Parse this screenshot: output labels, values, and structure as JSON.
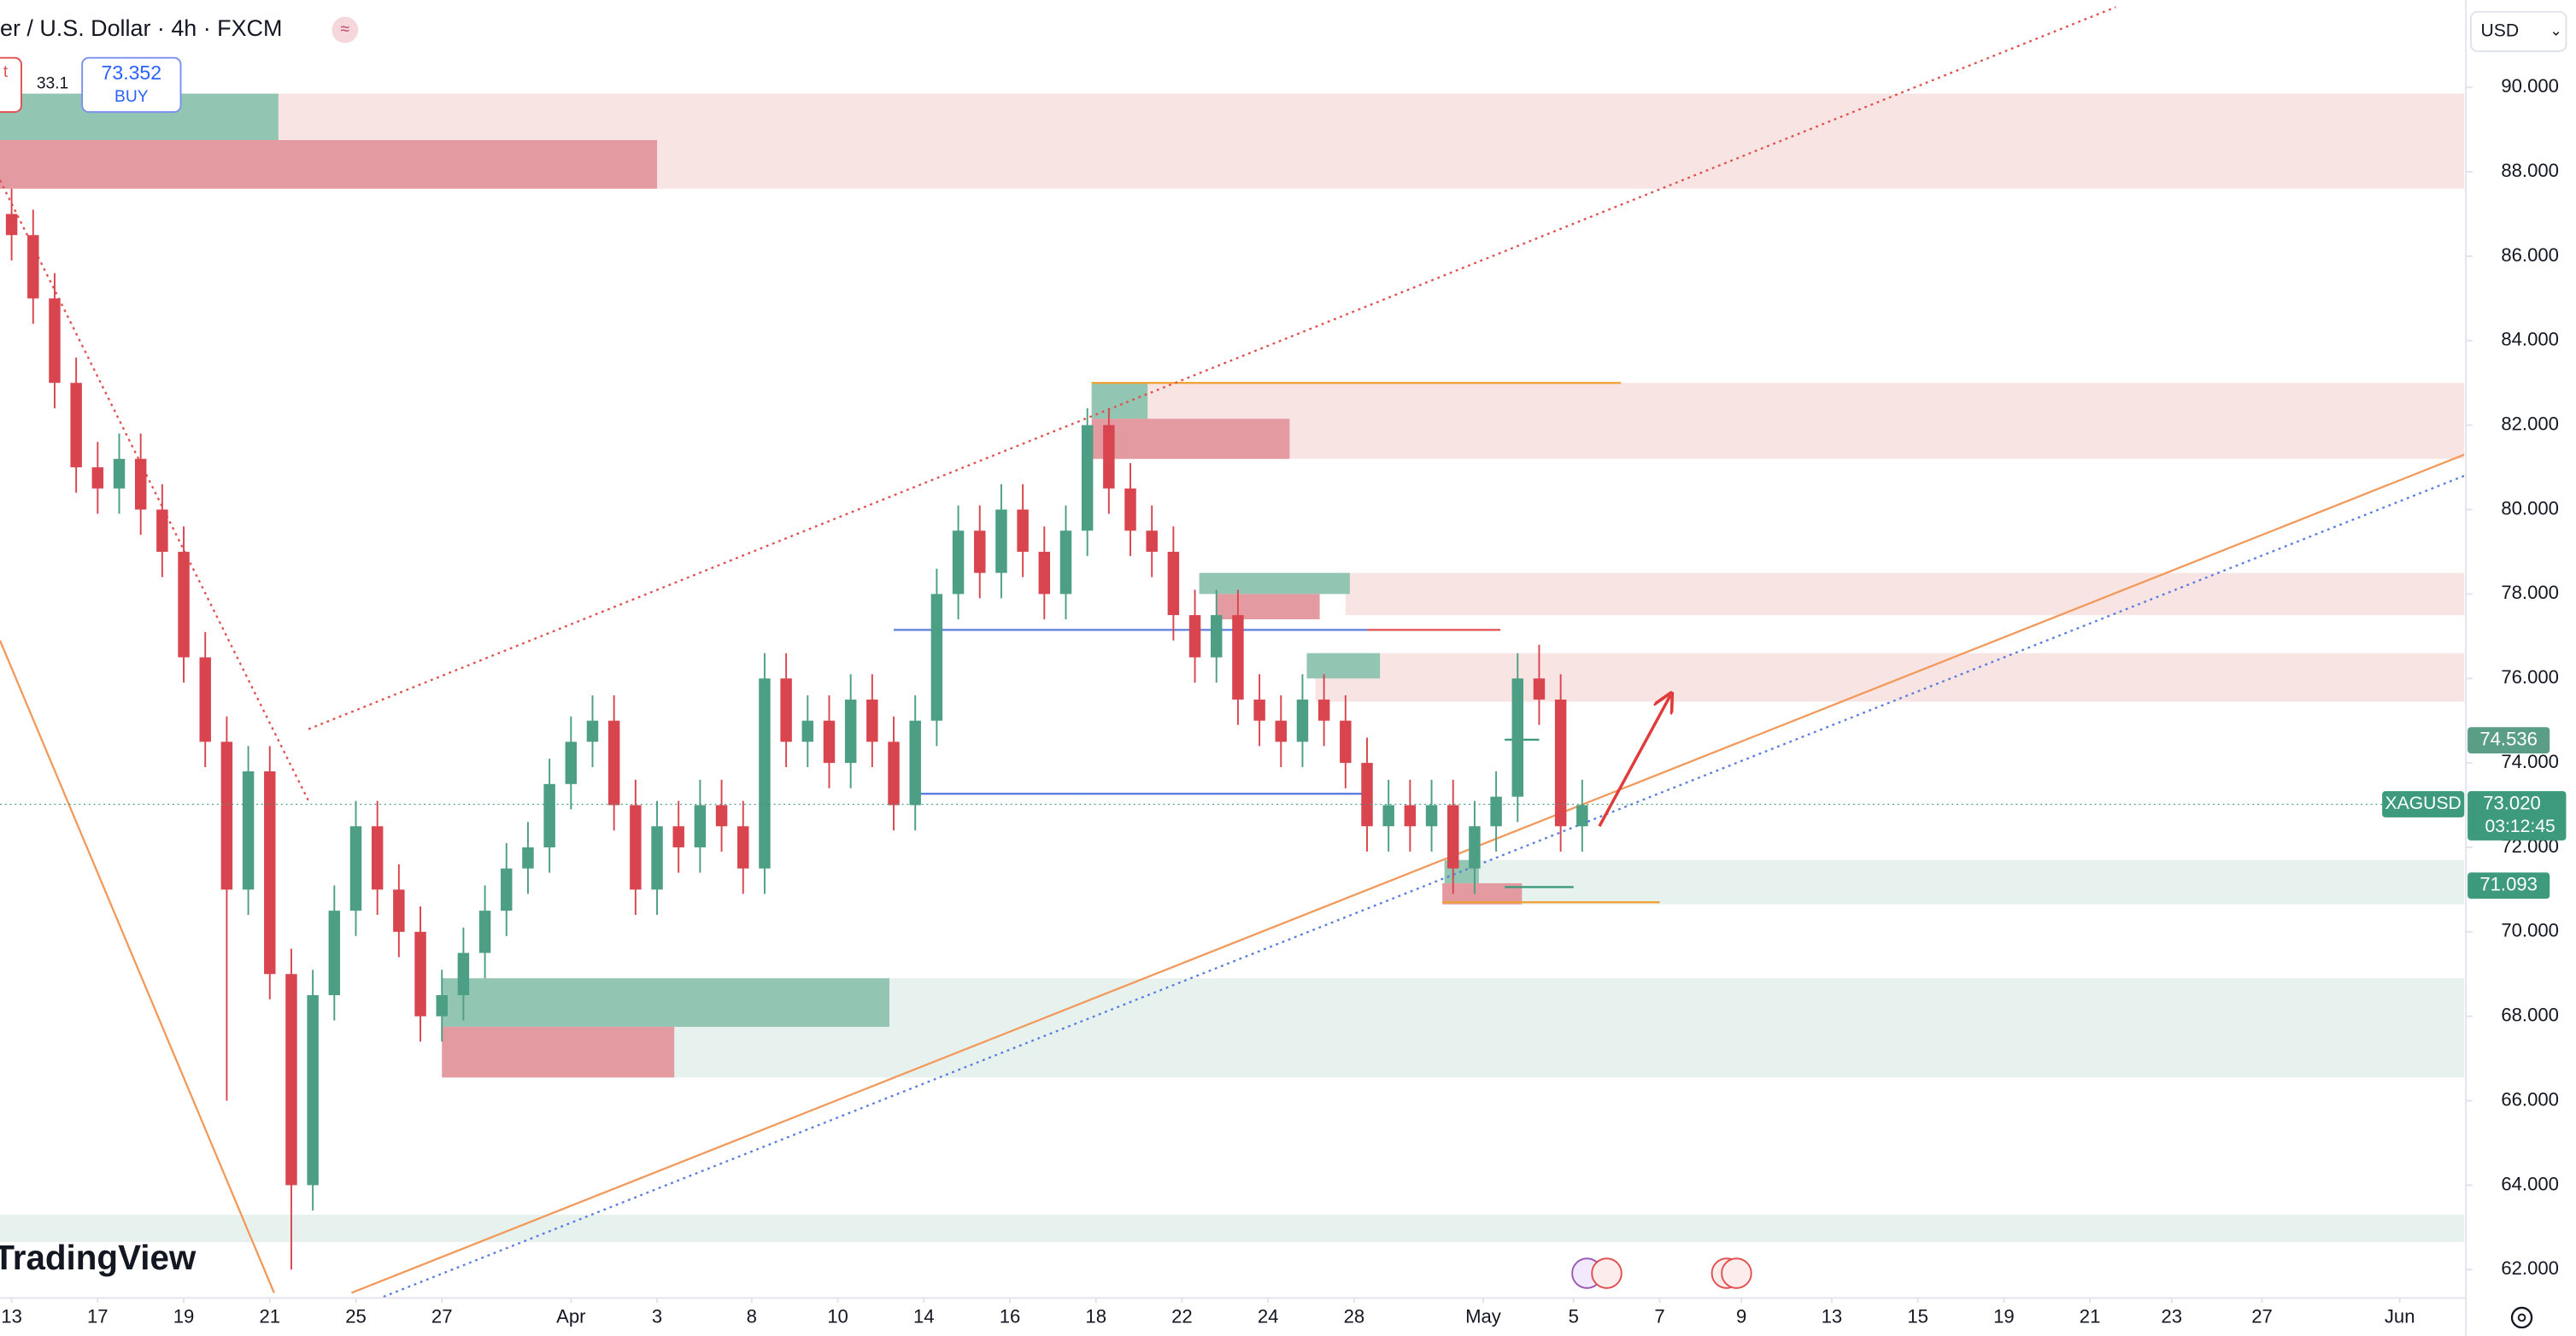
{
  "chart_data": {
    "type": "candlestick",
    "title": "er / U.S. Dollar · 4h · FXCM",
    "currency": "USD",
    "watermark": "TradingView",
    "order_panel": {
      "sell_fragment": "t",
      "spread": "33.1",
      "buy_price": "73.352",
      "buy_label": "BUY"
    },
    "up_color": "#4c9e84",
    "down_color": "#d9454e",
    "grid": false,
    "xlim": [
      -0.27,
      57.0
    ],
    "xticks": [
      {
        "value": 0,
        "label": "13"
      },
      {
        "value": 2.0,
        "label": "17"
      },
      {
        "value": 4.0,
        "label": "19"
      },
      {
        "value": 6.0,
        "label": "21"
      },
      {
        "value": 8.0,
        "label": "25"
      },
      {
        "value": 10.0,
        "label": "27"
      },
      {
        "value": 13.0,
        "label": "Apr"
      },
      {
        "value": 15.0,
        "label": "3"
      },
      {
        "value": 17.2,
        "label": "8"
      },
      {
        "value": 19.2,
        "label": "10"
      },
      {
        "value": 21.2,
        "label": "14"
      },
      {
        "value": 23.2,
        "label": "16"
      },
      {
        "value": 25.2,
        "label": "18"
      },
      {
        "value": 27.2,
        "label": "22"
      },
      {
        "value": 29.2,
        "label": "24"
      },
      {
        "value": 31.2,
        "label": "28"
      },
      {
        "value": 34.2,
        "label": "May"
      },
      {
        "value": 36.3,
        "label": "5"
      },
      {
        "value": 38.3,
        "label": "7"
      },
      {
        "value": 40.2,
        "label": "9"
      },
      {
        "value": 42.3,
        "label": "13"
      },
      {
        "value": 44.3,
        "label": "15"
      },
      {
        "value": 46.3,
        "label": "19"
      },
      {
        "value": 48.3,
        "label": "21"
      },
      {
        "value": 50.2,
        "label": "23"
      },
      {
        "value": 52.3,
        "label": "27"
      },
      {
        "value": 55.5,
        "label": "Jun"
      }
    ],
    "ylim": [
      61.33,
      92.06
    ],
    "yticks": [
      {
        "value": 90,
        "label": "90.000"
      },
      {
        "value": 88,
        "label": "88.000"
      },
      {
        "value": 86,
        "label": "86.000"
      },
      {
        "value": 84,
        "label": "84.000"
      },
      {
        "value": 82,
        "label": "82.000"
      },
      {
        "value": 80,
        "label": "80.000"
      },
      {
        "value": 78,
        "label": "78.000"
      },
      {
        "value": 76,
        "label": "76.000"
      },
      {
        "value": 74,
        "label": "74.000"
      },
      {
        "value": 72,
        "label": "72.000"
      },
      {
        "value": 70,
        "label": "70.000"
      },
      {
        "value": 68,
        "label": "68.000"
      },
      {
        "value": 66,
        "label": "66.000"
      },
      {
        "value": 64,
        "label": "64.000"
      },
      {
        "value": 62,
        "label": "62.000"
      }
    ],
    "x": [
      0,
      0.5,
      1,
      1.5,
      2,
      2.5,
      3,
      3.5,
      4,
      4.5,
      5,
      5.5,
      6,
      6.5,
      7,
      7.5,
      8,
      8.5,
      9,
      9.5,
      10,
      10.5,
      11,
      11.5,
      12,
      12.5,
      13,
      13.5,
      14,
      14.5,
      15,
      15.5,
      16,
      16.5,
      17,
      17.5,
      18,
      18.5,
      19,
      19.5,
      20,
      20.5,
      21,
      21.5,
      22,
      22.5,
      23,
      23.5,
      24,
      24.5,
      25,
      25.5,
      26,
      26.5,
      27,
      27.5,
      28,
      28.5,
      29,
      29.5,
      30,
      30.5,
      31,
      31.5,
      32,
      32.5,
      33,
      33.5,
      34,
      34.5,
      35,
      35.5,
      36,
      36.5
    ],
    "open": [
      87.0,
      86.5,
      85.0,
      83.0,
      81.0,
      80.5,
      81.2,
      80.0,
      79.0,
      76.5,
      74.5,
      71.0,
      73.8,
      69.0,
      64.0,
      68.5,
      70.5,
      72.5,
      71.0,
      70.0,
      68.0,
      68.5,
      69.5,
      70.5,
      71.5,
      72.0,
      73.5,
      74.5,
      75.0,
      73.0,
      71.0,
      72.5,
      72.0,
      73.0,
      72.5,
      71.5,
      76.0,
      74.5,
      75.0,
      74.0,
      75.5,
      74.5,
      73.0,
      75.0,
      78.0,
      79.5,
      78.5,
      80.0,
      79.0,
      78.0,
      79.5,
      82.0,
      80.5,
      79.5,
      79.0,
      77.5,
      76.5,
      77.5,
      75.5,
      75.0,
      74.5,
      75.5,
      75.0,
      74.0,
      72.5,
      73.0,
      72.5,
      73.0,
      71.5,
      72.5,
      73.2,
      76.0,
      75.5,
      72.5
    ],
    "high": [
      87.6,
      87.1,
      85.6,
      83.6,
      81.6,
      81.8,
      81.8,
      80.6,
      79.6,
      77.1,
      75.1,
      74.4,
      74.4,
      69.6,
      69.1,
      71.1,
      73.1,
      73.1,
      71.6,
      70.6,
      69.1,
      70.1,
      71.1,
      72.1,
      72.6,
      74.1,
      75.1,
      75.6,
      75.6,
      73.6,
      73.1,
      73.1,
      73.6,
      73.6,
      73.1,
      76.6,
      76.6,
      75.6,
      75.6,
      76.1,
      76.1,
      75.1,
      75.6,
      78.6,
      80.1,
      80.1,
      80.6,
      80.6,
      79.6,
      80.1,
      82.4,
      82.4,
      81.1,
      80.1,
      79.6,
      78.1,
      78.1,
      78.1,
      76.1,
      75.6,
      76.1,
      76.1,
      75.6,
      74.6,
      73.6,
      73.6,
      73.6,
      73.6,
      73.1,
      73.8,
      76.6,
      76.8,
      76.1,
      73.6
    ],
    "low": [
      85.9,
      84.4,
      82.4,
      80.4,
      79.9,
      79.9,
      79.4,
      78.4,
      75.9,
      73.9,
      66.0,
      70.4,
      68.4,
      62.0,
      63.4,
      67.9,
      69.9,
      70.4,
      69.4,
      67.4,
      67.4,
      67.9,
      68.9,
      69.9,
      70.9,
      71.4,
      72.9,
      73.9,
      72.4,
      70.4,
      70.4,
      71.4,
      71.4,
      71.9,
      70.9,
      70.9,
      73.9,
      73.9,
      73.4,
      73.4,
      73.9,
      72.4,
      72.4,
      74.4,
      77.4,
      77.9,
      77.9,
      78.4,
      77.4,
      77.4,
      78.9,
      79.9,
      78.9,
      78.4,
      76.9,
      75.9,
      75.9,
      74.9,
      74.4,
      73.9,
      73.9,
      74.4,
      73.4,
      71.9,
      71.9,
      71.9,
      71.9,
      70.9,
      70.9,
      71.9,
      72.6,
      74.9,
      71.9,
      71.9
    ],
    "close": [
      86.5,
      85.0,
      83.0,
      81.0,
      80.5,
      81.2,
      80.0,
      79.0,
      76.5,
      74.5,
      71.0,
      73.8,
      69.0,
      64.0,
      68.5,
      70.5,
      72.5,
      71.0,
      70.0,
      68.0,
      68.5,
      69.5,
      70.5,
      71.5,
      72.0,
      73.5,
      74.5,
      75.0,
      73.0,
      71.0,
      72.5,
      72.0,
      73.0,
      72.5,
      71.5,
      76.0,
      74.5,
      75.0,
      74.0,
      75.5,
      74.5,
      73.0,
      75.0,
      78.0,
      79.5,
      78.5,
      80.0,
      79.0,
      78.0,
      79.5,
      82.0,
      80.5,
      79.5,
      79.0,
      77.5,
      76.5,
      77.5,
      75.5,
      75.0,
      74.5,
      75.5,
      75.0,
      74.0,
      72.5,
      73.0,
      72.5,
      73.0,
      71.5,
      72.5,
      73.2,
      76.0,
      75.5,
      72.5,
      73.0
    ],
    "zones": [
      {
        "top": 89.85,
        "bottom": 87.6,
        "start": -0.27,
        "end": 57.0,
        "color": "#f9e4e4"
      },
      {
        "top": 89.85,
        "bottom": 88.75,
        "start": -0.27,
        "end": 6.2,
        "color": "#93c6b2"
      },
      {
        "top": 88.75,
        "bottom": 87.6,
        "start": -0.27,
        "end": 15.0,
        "color": "#e39ba1"
      },
      {
        "top": 83.0,
        "bottom": 81.2,
        "start": 25.1,
        "end": 57.0,
        "color": "#f9e4e4"
      },
      {
        "top": 83.0,
        "bottom": 82.15,
        "start": 25.1,
        "end": 26.4,
        "color": "#93c6b2"
      },
      {
        "top": 82.15,
        "bottom": 81.2,
        "start": 25.1,
        "end": 29.7,
        "color": "#e39ba1"
      },
      {
        "top": 78.5,
        "bottom": 77.5,
        "start": 31.0,
        "end": 57.0,
        "color": "#f9e4e4"
      },
      {
        "top": 78.5,
        "bottom": 78.0,
        "start": 27.6,
        "end": 31.1,
        "color": "#93c6b2"
      },
      {
        "top": 78.0,
        "bottom": 77.4,
        "start": 28.0,
        "end": 30.4,
        "color": "#e39ba1"
      },
      {
        "top": 76.6,
        "bottom": 75.45,
        "start": 30.3,
        "end": 57.0,
        "color": "#f9e4e4"
      },
      {
        "top": 76.6,
        "bottom": 76.0,
        "start": 30.1,
        "end": 31.8,
        "color": "#93c6b2"
      },
      {
        "top": 71.7,
        "bottom": 70.65,
        "start": 33.3,
        "end": 57.0,
        "color": "#e7f2ef"
      },
      {
        "top": 71.7,
        "bottom": 71.15,
        "start": 33.3,
        "end": 34.1,
        "color": "#93c6b2"
      },
      {
        "top": 71.15,
        "bottom": 70.65,
        "start": 33.25,
        "end": 35.1,
        "color": "#e39ba1"
      },
      {
        "top": 68.9,
        "bottom": 66.55,
        "start": 10.0,
        "end": 57.0,
        "color": "#e7f2ef"
      },
      {
        "top": 68.9,
        "bottom": 67.75,
        "start": 10.0,
        "end": 20.4,
        "color": "#93c6b2"
      },
      {
        "top": 67.75,
        "bottom": 66.55,
        "start": 10.0,
        "end": 15.4,
        "color": "#e39ba1"
      },
      {
        "top": 63.3,
        "bottom": 62.65,
        "start": -0.27,
        "end": 57.0,
        "color": "#e7f2ef"
      }
    ],
    "lines": [
      {
        "x": [
          25.1,
          37.4
        ],
        "y": [
          83.0,
          83.0
        ],
        "color": "#f0a030",
        "style": "solid"
      },
      {
        "x": [
          33.25,
          38.3
        ],
        "y": [
          70.7,
          70.7
        ],
        "color": "#f0a030",
        "style": "solid"
      },
      {
        "x": [
          20.5,
          31.5
        ],
        "y": [
          77.15,
          77.15
        ],
        "color": "#5b7de0",
        "style": "solid"
      },
      {
        "x": [
          31.5,
          34.6
        ],
        "y": [
          77.15,
          77.15
        ],
        "color": "#e05050",
        "style": "solid"
      },
      {
        "x": [
          20.9,
          31.5
        ],
        "y": [
          73.27,
          73.27
        ],
        "color": "#5b7de0",
        "style": "solid"
      },
      {
        "x": [
          34.7,
          35.5
        ],
        "y": [
          74.55,
          74.55
        ],
        "color": "#3d9a7d",
        "style": "solid"
      },
      {
        "x": [
          34.7,
          36.3
        ],
        "y": [
          71.06,
          71.06
        ],
        "color": "#3d9a7d",
        "style": "solid"
      },
      {
        "x": [
          7.9,
          57.0
        ],
        "y": [
          61.45,
          81.3
        ],
        "color": "#f29a5c",
        "style": "solid"
      },
      {
        "x": [
          8.5,
          57.0
        ],
        "y": [
          61.3,
          80.8
        ],
        "color": "#5b7de0",
        "style": "dotted"
      },
      {
        "x": [
          6.9,
          48.9
        ],
        "y": [
          74.8,
          91.9
        ],
        "color": "#e05050",
        "style": "dotted"
      },
      {
        "x": [
          -0.27,
          6.9
        ],
        "y": [
          87.8,
          73.1
        ],
        "color": "#e05050",
        "style": "dotted"
      },
      {
        "x": [
          -0.27,
          6.1
        ],
        "y": [
          76.9,
          61.45
        ],
        "color": "#f29a5c",
        "style": "solid"
      },
      {
        "x": [
          36.9,
          38.55
        ],
        "y": [
          72.5,
          75.6
        ],
        "color": "#e03a3a",
        "style": "arrow"
      }
    ],
    "price_tags": [
      {
        "value": 74.536,
        "color": "#5a9e87"
      },
      {
        "value": 73.02,
        "label": "73.020",
        "name": "XAGUSD",
        "countdown": "03:12:45",
        "color": "#3d9a7d"
      },
      {
        "value": 71.093,
        "color": "#3d9a7d"
      }
    ]
  }
}
